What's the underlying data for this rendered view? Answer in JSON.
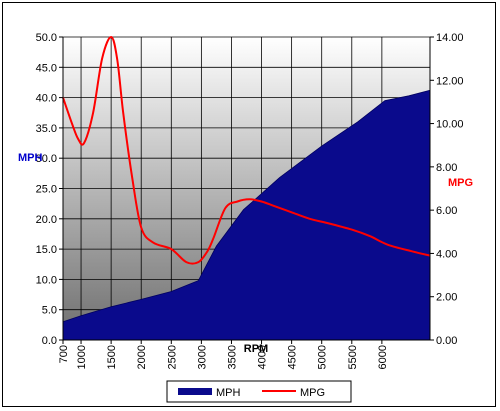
{
  "chart_data": {
    "type": "area+line",
    "title": "",
    "xlabel": "RPM",
    "ylabel_left": "MPH",
    "ylabel_right": "MPG",
    "x_tick_labels": [
      "700",
      "1000",
      "1500",
      "2000",
      "2500",
      "3000",
      "3500",
      "4000",
      "4500",
      "5000",
      "5500",
      "6000"
    ],
    "x_tick_values": [
      700,
      1000,
      1500,
      2000,
      2500,
      3000,
      3500,
      4000,
      4500,
      5000,
      5500,
      6000
    ],
    "xlim": [
      700,
      6800
    ],
    "ylim_left": [
      0,
      50
    ],
    "ylim_right": [
      0,
      14
    ],
    "y_left_ticks": [
      "0.0",
      "5.0",
      "10.0",
      "15.0",
      "20.0",
      "25.0",
      "30.0",
      "35.0",
      "40.0",
      "45.0",
      "50.0"
    ],
    "y_right_ticks": [
      "0.00",
      "2.00",
      "4.00",
      "6.00",
      "8.00",
      "10.00",
      "12.00",
      "14.00"
    ],
    "grid": true,
    "legend_position": "bottom",
    "series": [
      {
        "name": "MPH",
        "type": "area",
        "axis": "left",
        "color": "#0a0a8c",
        "x": [
          700,
          1000,
          1500,
          2000,
          2500,
          2950,
          3250,
          3700,
          4300,
          5000,
          5600,
          6050,
          6450,
          6800
        ],
        "values": [
          3.0,
          4.0,
          5.5,
          6.7,
          8.0,
          9.8,
          15.5,
          21.5,
          26.8,
          32.0,
          36.0,
          39.5,
          40.3,
          41.2
        ]
      },
      {
        "name": "MPG",
        "type": "line",
        "axis": "right",
        "color": "#ff0000",
        "x": [
          700,
          850,
          950,
          1050,
          1200,
          1350,
          1500,
          1600,
          1700,
          1850,
          2000,
          2200,
          2500,
          2750,
          2950,
          3100,
          3200,
          3400,
          3600,
          3800,
          4000,
          4200,
          4500,
          4800,
          5100,
          5500,
          5800,
          6100,
          6500,
          6800
        ],
        "values": [
          11.2,
          10.0,
          9.3,
          9.1,
          10.5,
          13.0,
          14.0,
          13.0,
          10.5,
          7.5,
          5.2,
          4.5,
          4.2,
          3.6,
          3.6,
          4.1,
          4.7,
          6.1,
          6.4,
          6.5,
          6.4,
          6.2,
          5.9,
          5.6,
          5.4,
          5.1,
          4.8,
          4.4,
          4.1,
          3.9
        ]
      }
    ]
  }
}
